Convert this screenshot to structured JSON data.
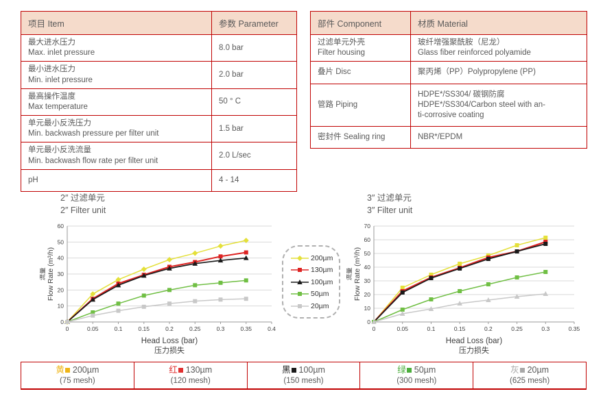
{
  "colors": {
    "table_border": "#c00000",
    "header_bg": "#f5dbcb",
    "body_text": "#595959",
    "axis_text": "#404040",
    "grid_line": "#d9d9d9",
    "axis_line": "#9a9a9a"
  },
  "spec_table": {
    "headers": [
      "项目 Item",
      "参数 Parameter"
    ],
    "rows": [
      {
        "item_cn": "最大进水压力",
        "item_en": "Max. inlet pressure",
        "value": "8.0 bar"
      },
      {
        "item_cn": "最小进水压力",
        "item_en": "Min. inlet pressure",
        "value": "2.0 bar"
      },
      {
        "item_cn": "最高操作温度",
        "item_en": "Max temperature",
        "value": "50 ° C"
      },
      {
        "item_cn": "单元最小反洗压力",
        "item_en": "Min. backwash pressure per filter unit",
        "value": "1.5 bar"
      },
      {
        "item_cn": "单元最小反洗流量",
        "item_en": "Min. backwash flow rate per filter unit",
        "value": "2.0 L/sec"
      },
      {
        "item_cn": "pH",
        "item_en": "",
        "value": "4 - 14"
      }
    ]
  },
  "material_table": {
    "headers": [
      "部件 Component",
      "材质 Material"
    ],
    "rows": [
      {
        "component_lines": [
          "过滤单元外壳",
          "Filter housing"
        ],
        "material_lines": [
          "玻纤增强聚酰胺（尼龙）",
          "Glass fiber reinforced polyamide"
        ]
      },
      {
        "component_lines": [
          "叠片 Disc"
        ],
        "material_lines": [
          "聚丙烯（PP）Polypropylene (PP)"
        ]
      },
      {
        "component_lines": [
          "管路 Piping"
        ],
        "material_lines": [
          "HDPE*/SS304/ 碳钢防腐",
          "HDPE*/SS304/Carbon steel with an-",
          "ti-corrosive coating"
        ]
      },
      {
        "component_lines": [
          "密封件 Sealing ring"
        ],
        "material_lines": [
          "NBR*/EPDM"
        ]
      }
    ]
  },
  "chart_data": [
    {
      "type": "line",
      "title_cn": "2″ 过滤单元",
      "title_en": "2″ Filter unit",
      "ylabel_cn": "流量",
      "ylabel_en": "Flow Rate (m³/h)",
      "xlabel_en": "Head Loss (bar)",
      "xlabel_cn": "压力损失",
      "xlim": [
        0,
        0.4
      ],
      "ylim": [
        0,
        60
      ],
      "xtick_labels": [
        "0",
        "0.05",
        "0.1",
        "0.15",
        "0.2",
        "0.25",
        "0.3",
        "0.35",
        "0.4"
      ],
      "ytick_labels": [
        "0",
        "10",
        "20",
        "30",
        "40",
        "50",
        "60"
      ],
      "x": [
        0,
        0.05,
        0.1,
        0.15,
        0.2,
        0.25,
        0.3,
        0.35
      ],
      "series": [
        {
          "name": "200µm",
          "color": "#e4e03a",
          "marker": "diamond",
          "width": 1.5,
          "values": [
            0,
            17.5,
            26.5,
            33,
            39,
            43,
            47.5,
            51
          ]
        },
        {
          "name": "130µm",
          "color": "#dd2423",
          "marker": "square",
          "width": 2,
          "values": [
            0,
            14.5,
            24,
            29.5,
            34.5,
            37.5,
            41,
            43.5
          ]
        },
        {
          "name": "100µm",
          "color": "#1a1a1a",
          "marker": "triangle",
          "width": 1.7,
          "values": [
            0,
            14,
            23,
            29,
            33.5,
            36.5,
            38.5,
            40
          ]
        },
        {
          "name": "50µm",
          "color": "#70bf44",
          "marker": "square",
          "width": 1.5,
          "values": [
            0,
            6,
            11.5,
            16.5,
            20,
            23,
            24.5,
            26
          ]
        },
        {
          "name": "20µm",
          "color": "#c8c8c8",
          "marker": "square",
          "width": 1.5,
          "values": [
            0,
            4,
            7,
            9.5,
            11.5,
            13,
            14,
            14.5
          ]
        }
      ]
    },
    {
      "type": "line",
      "title_cn": "3″ 过滤单元",
      "title_en": "3″ Filter unit",
      "ylabel_cn": "流量",
      "ylabel_en": "Flow Rate (m³/h)",
      "xlabel_en": "Head Loss (bar)",
      "xlabel_cn": "压力损失",
      "xlim": [
        0,
        0.35
      ],
      "ylim": [
        0,
        70
      ],
      "xtick_labels": [
        "0",
        "0.05",
        "0.1",
        "0.15",
        "0.2",
        "0.25",
        "0.3",
        "0.35"
      ],
      "ytick_labels": [
        "0",
        "10",
        "20",
        "30",
        "40",
        "50",
        "60",
        "70"
      ],
      "x": [
        0,
        0.05,
        0.1,
        0.15,
        0.2,
        0.25,
        0.3
      ],
      "series": [
        {
          "name": "200µm",
          "color": "#e4e03a",
          "marker": "square",
          "width": 1.5,
          "values": [
            0,
            25,
            34.5,
            42.5,
            48.5,
            56,
            61.5
          ]
        },
        {
          "name": "130µm",
          "color": "#dd2423",
          "marker": "square",
          "width": 2.2,
          "values": [
            0,
            22.5,
            32.5,
            39.5,
            47,
            51.5,
            58.5
          ]
        },
        {
          "name": "100µm",
          "color": "#1a1a1a",
          "marker": "square",
          "width": 1.7,
          "values": [
            0,
            21.5,
            32,
            39,
            46,
            51.5,
            57
          ]
        },
        {
          "name": "50µm",
          "color": "#70bf44",
          "marker": "square",
          "width": 1.5,
          "values": [
            0,
            9,
            16.5,
            22.5,
            27.5,
            32.5,
            36.5
          ]
        },
        {
          "name": "20µm",
          "color": "#c8c8c8",
          "marker": "triangle",
          "width": 1.5,
          "values": [
            0,
            6,
            9.5,
            13.5,
            16,
            18.5,
            20.5
          ]
        }
      ]
    }
  ],
  "chart_legend": {
    "items": [
      {
        "label": "200µm",
        "color": "#e4e03a",
        "marker": "diamond"
      },
      {
        "label": "130µm",
        "color": "#dd2423",
        "marker": "square"
      },
      {
        "label": "100µm",
        "color": "#1a1a1a",
        "marker": "triangle"
      },
      {
        "label": "50µm",
        "color": "#70bf44",
        "marker": "square"
      },
      {
        "label": "20µm",
        "color": "#c8c8c8",
        "marker": "square"
      }
    ]
  },
  "bottom_legend": {
    "items": [
      {
        "cn": "黄",
        "color": "#efb517",
        "size": "200µm",
        "mesh": "(75 mesh)"
      },
      {
        "cn": "红",
        "color": "#e03030",
        "size": "130µm",
        "mesh": "(120 mesh)"
      },
      {
        "cn": "黑",
        "color": "#1a1a1a",
        "size": "100µm",
        "mesh": "(150 mesh)"
      },
      {
        "cn": "绿",
        "color": "#4cae3d",
        "size": "50µm",
        "mesh": "(300 mesh)"
      },
      {
        "cn": "灰",
        "color": "#a8a8a8",
        "size": "20µm",
        "mesh": "(625 mesh)"
      }
    ]
  }
}
